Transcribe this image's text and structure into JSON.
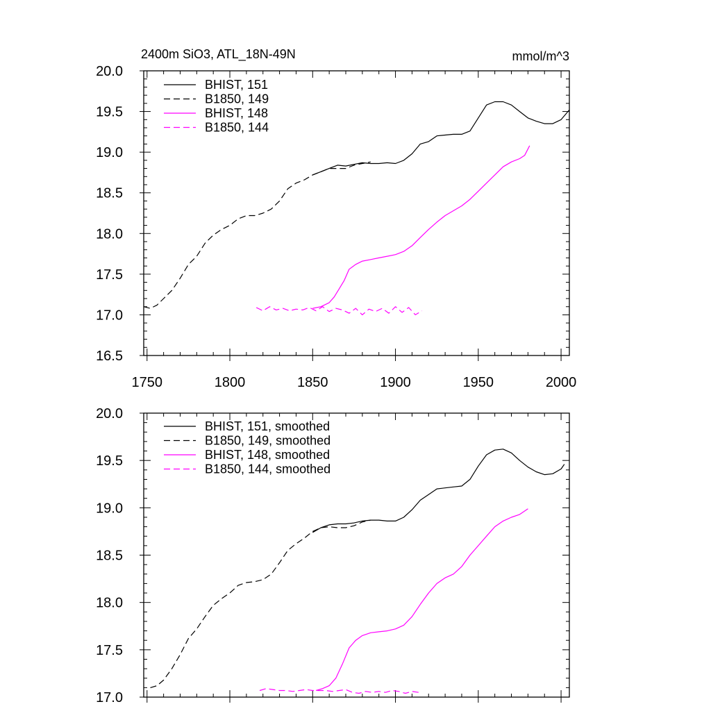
{
  "title_left": "2400m SiO3, ATL_18N-49N",
  "title_right": "mmol/m^3",
  "chart_data": [
    {
      "type": "line",
      "xlim": [
        1748,
        2005
      ],
      "ylim": [
        16.5,
        20.0
      ],
      "xticks": [
        1750,
        1800,
        1850,
        1900,
        1950,
        2000
      ],
      "xtick_labels": [
        "1750",
        "1800",
        "1850",
        "1900",
        "1950",
        "2000"
      ],
      "yticks": [
        16.5,
        17.0,
        17.5,
        18.0,
        18.5,
        19.0,
        19.5,
        20.0
      ],
      "ytick_labels": [
        "16.5",
        "17.0",
        "17.5",
        "18.0",
        "18.5",
        "19.0",
        "19.5",
        "20.0"
      ],
      "legend_position": "top-left",
      "series": [
        {
          "name": "BHIST, 151",
          "color": "#000000",
          "dash": "solid",
          "x": [
            1850,
            1855,
            1860,
            1865,
            1870,
            1875,
            1880,
            1885,
            1890,
            1895,
            1900,
            1905,
            1910,
            1915,
            1920,
            1925,
            1930,
            1935,
            1940,
            1945,
            1950,
            1955,
            1960,
            1965,
            1970,
            1975,
            1980,
            1985,
            1990,
            1995,
            2000,
            2005
          ],
          "y": [
            18.72,
            18.76,
            18.8,
            18.84,
            18.83,
            18.85,
            18.87,
            18.86,
            18.86,
            18.87,
            18.86,
            18.9,
            18.98,
            19.1,
            19.13,
            19.2,
            19.21,
            19.22,
            19.22,
            19.26,
            19.42,
            19.58,
            19.62,
            19.62,
            19.58,
            19.5,
            19.42,
            19.38,
            19.35,
            19.35,
            19.4,
            19.52
          ]
        },
        {
          "name": "B1850, 149",
          "color": "#000000",
          "dash": "dashed",
          "x": [
            1748,
            1752,
            1756,
            1760,
            1765,
            1770,
            1775,
            1780,
            1785,
            1790,
            1795,
            1800,
            1805,
            1810,
            1815,
            1820,
            1825,
            1830,
            1835,
            1840,
            1845,
            1850,
            1855,
            1860,
            1865,
            1870,
            1875,
            1880,
            1885
          ],
          "y": [
            17.1,
            17.08,
            17.12,
            17.2,
            17.3,
            17.45,
            17.62,
            17.72,
            17.88,
            17.98,
            18.05,
            18.1,
            18.18,
            18.22,
            18.22,
            18.25,
            18.3,
            18.4,
            18.55,
            18.62,
            18.66,
            18.72,
            18.76,
            18.8,
            18.8,
            18.8,
            18.84,
            18.86,
            18.88
          ]
        },
        {
          "name": "BHIST, 148",
          "color": "#ff00ff",
          "dash": "solid",
          "x": [
            1850,
            1855,
            1860,
            1863,
            1866,
            1869,
            1872,
            1876,
            1880,
            1885,
            1890,
            1895,
            1900,
            1905,
            1910,
            1915,
            1920,
            1925,
            1930,
            1935,
            1940,
            1945,
            1950,
            1955,
            1960,
            1965,
            1970,
            1975,
            1978,
            1981
          ],
          "y": [
            17.08,
            17.1,
            17.15,
            17.22,
            17.32,
            17.42,
            17.56,
            17.62,
            17.66,
            17.68,
            17.7,
            17.72,
            17.74,
            17.78,
            17.85,
            17.95,
            18.05,
            18.14,
            18.22,
            18.28,
            18.34,
            18.42,
            18.52,
            18.62,
            18.72,
            18.82,
            18.88,
            18.92,
            18.96,
            19.08
          ]
        },
        {
          "name": "B1850, 144",
          "color": "#ff00ff",
          "dash": "dashed",
          "x": [
            1816,
            1820,
            1824,
            1828,
            1832,
            1836,
            1840,
            1844,
            1848,
            1852,
            1856,
            1860,
            1864,
            1868,
            1872,
            1876,
            1880,
            1884,
            1888,
            1892,
            1896,
            1900,
            1904,
            1908,
            1912,
            1916
          ],
          "y": [
            17.09,
            17.05,
            17.1,
            17.06,
            17.08,
            17.05,
            17.07,
            17.06,
            17.09,
            17.05,
            17.1,
            17.04,
            17.08,
            17.06,
            17.02,
            17.08,
            17.0,
            17.07,
            17.04,
            17.08,
            17.02,
            17.1,
            17.03,
            17.09,
            17.0,
            17.05
          ]
        }
      ]
    },
    {
      "type": "line",
      "xlim": [
        1748,
        2005
      ],
      "ylim": [
        17.0,
        20.0
      ],
      "xticks": [
        1750,
        1800,
        1850,
        1900,
        1950,
        2000
      ],
      "yticks": [
        17.0,
        17.5,
        18.0,
        18.5,
        19.0,
        19.5,
        20.0
      ],
      "ytick_labels": [
        "17.0",
        "17.5",
        "18.0",
        "18.5",
        "19.0",
        "19.5",
        "20.0"
      ],
      "legend_position": "top-left",
      "series": [
        {
          "name": "BHIST, 151, smoothed",
          "color": "#000000",
          "dash": "solid",
          "x": [
            1850,
            1855,
            1860,
            1865,
            1870,
            1875,
            1880,
            1885,
            1890,
            1895,
            1900,
            1905,
            1910,
            1915,
            1920,
            1925,
            1930,
            1935,
            1940,
            1945,
            1950,
            1955,
            1960,
            1965,
            1970,
            1975,
            1980,
            1985,
            1990,
            1995,
            2000,
            2002
          ],
          "y": [
            18.74,
            18.79,
            18.82,
            18.83,
            18.83,
            18.84,
            18.86,
            18.87,
            18.87,
            18.86,
            18.86,
            18.9,
            18.98,
            19.08,
            19.14,
            19.2,
            19.21,
            19.22,
            19.23,
            19.3,
            19.44,
            19.56,
            19.61,
            19.62,
            19.58,
            19.5,
            19.43,
            19.38,
            19.35,
            19.36,
            19.41,
            19.46
          ]
        },
        {
          "name": "B1850, 149, smoothed",
          "color": "#000000",
          "dash": "dashed",
          "x": [
            1752,
            1756,
            1760,
            1765,
            1770,
            1775,
            1780,
            1785,
            1790,
            1795,
            1800,
            1805,
            1810,
            1815,
            1820,
            1825,
            1830,
            1835,
            1840,
            1845,
            1850,
            1855,
            1860,
            1865,
            1870,
            1875,
            1880,
            1885
          ],
          "y": [
            17.1,
            17.12,
            17.18,
            17.3,
            17.45,
            17.62,
            17.72,
            17.85,
            17.97,
            18.04,
            18.1,
            18.18,
            18.21,
            18.22,
            18.24,
            18.3,
            18.42,
            18.55,
            18.62,
            18.68,
            18.75,
            18.79,
            18.8,
            18.79,
            18.79,
            18.81,
            18.85,
            18.87
          ]
        },
        {
          "name": "BHIST, 148, smoothed",
          "color": "#ff00ff",
          "dash": "solid",
          "x": [
            1852,
            1856,
            1860,
            1864,
            1868,
            1872,
            1876,
            1880,
            1885,
            1890,
            1895,
            1900,
            1905,
            1910,
            1915,
            1920,
            1925,
            1930,
            1935,
            1940,
            1945,
            1950,
            1955,
            1960,
            1965,
            1970,
            1975,
            1980
          ],
          "y": [
            17.07,
            17.09,
            17.12,
            17.2,
            17.35,
            17.52,
            17.6,
            17.65,
            17.68,
            17.69,
            17.7,
            17.72,
            17.76,
            17.85,
            17.98,
            18.1,
            18.2,
            18.26,
            18.3,
            18.38,
            18.5,
            18.6,
            18.7,
            18.8,
            18.86,
            18.9,
            18.93,
            18.99
          ]
        },
        {
          "name": "B1850, 144, smoothed",
          "color": "#ff00ff",
          "dash": "dashed",
          "x": [
            1818,
            1822,
            1826,
            1830,
            1834,
            1838,
            1842,
            1846,
            1850,
            1854,
            1858,
            1862,
            1866,
            1870,
            1874,
            1878,
            1882,
            1886,
            1890,
            1894,
            1898,
            1902,
            1906,
            1910,
            1914
          ],
          "y": [
            17.07,
            17.09,
            17.08,
            17.07,
            17.07,
            17.06,
            17.07,
            17.08,
            17.07,
            17.07,
            17.07,
            17.06,
            17.07,
            17.08,
            17.05,
            17.04,
            17.06,
            17.05,
            17.06,
            17.05,
            17.07,
            17.06,
            17.04,
            17.06,
            17.05
          ]
        }
      ]
    }
  ]
}
